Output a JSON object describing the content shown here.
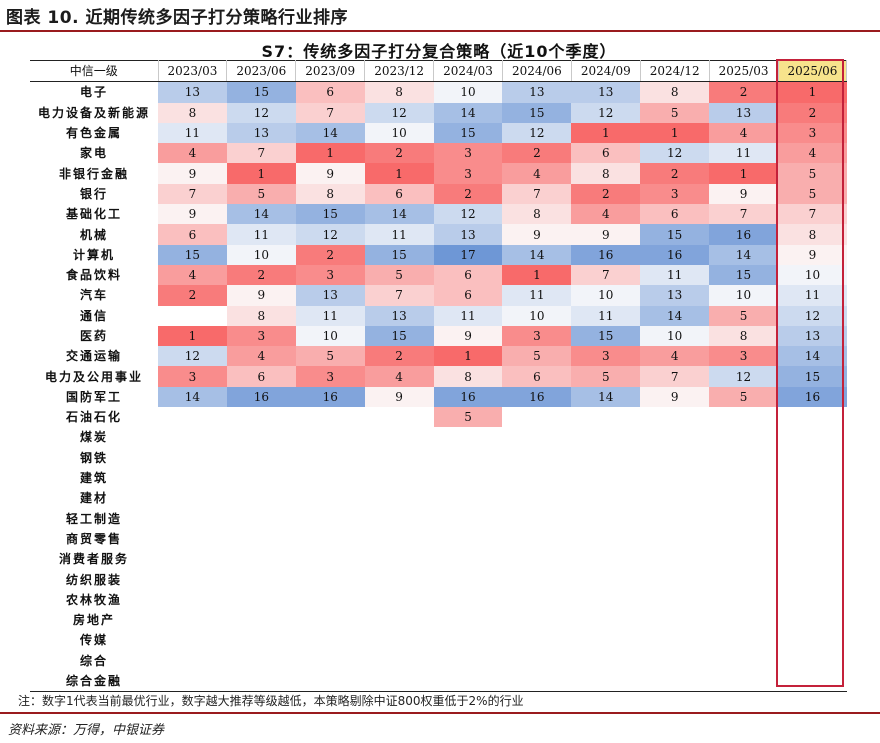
{
  "figure_title": "图表 10. 近期传统多因子打分策略行业排序",
  "table_title": "S7：传统多因子打分复合策略（近10个季度）",
  "corner_header": "中信一级",
  "columns": [
    "2023/03",
    "2023/06",
    "2023/09",
    "2023/12",
    "2024/03",
    "2024/06",
    "2024/09",
    "2024/12",
    "2025/03",
    "2025/06"
  ],
  "highlight_column": "2025/06",
  "colors": {
    "best": "#f86a6a",
    "worst": "#6e97d6",
    "mid": "#fbfbfb",
    "highlight_header": "#f7e38c",
    "highlight_frame": "#c4213a",
    "rule": "#9a1b1e"
  },
  "rows": [
    {
      "name": "电子",
      "ranks": [
        13,
        15,
        6,
        8,
        10,
        13,
        13,
        8,
        2,
        1
      ]
    },
    {
      "name": "电力设备及新能源",
      "ranks": [
        8,
        12,
        7,
        12,
        14,
        15,
        12,
        5,
        13,
        2
      ]
    },
    {
      "name": "有色金属",
      "ranks": [
        11,
        13,
        14,
        10,
        15,
        12,
        1,
        1,
        4,
        3
      ]
    },
    {
      "name": "家电",
      "ranks": [
        4,
        7,
        1,
        2,
        3,
        2,
        6,
        12,
        11,
        4
      ]
    },
    {
      "name": "非银行金融",
      "ranks": [
        9,
        1,
        9,
        1,
        3,
        4,
        8,
        2,
        1,
        5
      ]
    },
    {
      "name": "银行",
      "ranks": [
        7,
        5,
        8,
        6,
        2,
        7,
        2,
        3,
        9,
        5
      ]
    },
    {
      "name": "基础化工",
      "ranks": [
        9,
        14,
        15,
        14,
        12,
        8,
        4,
        6,
        7,
        7
      ]
    },
    {
      "name": "机械",
      "ranks": [
        6,
        11,
        12,
        11,
        13,
        9,
        9,
        15,
        16,
        8
      ]
    },
    {
      "name": "计算机",
      "ranks": [
        15,
        10,
        2,
        15,
        17,
        14,
        16,
        16,
        14,
        9
      ]
    },
    {
      "name": "食品饮料",
      "ranks": [
        4,
        2,
        3,
        5,
        6,
        1,
        7,
        11,
        15,
        10
      ]
    },
    {
      "name": "汽车",
      "ranks": [
        2,
        9,
        13,
        7,
        6,
        11,
        10,
        13,
        10,
        11
      ]
    },
    {
      "name": "通信",
      "ranks": [
        null,
        8,
        11,
        13,
        11,
        10,
        11,
        14,
        5,
        12
      ]
    },
    {
      "name": "医药",
      "ranks": [
        1,
        3,
        10,
        15,
        9,
        3,
        15,
        10,
        8,
        13
      ]
    },
    {
      "name": "交通运输",
      "ranks": [
        12,
        4,
        5,
        2,
        1,
        5,
        3,
        4,
        3,
        14
      ]
    },
    {
      "name": "电力及公用事业",
      "ranks": [
        3,
        6,
        3,
        4,
        8,
        6,
        5,
        7,
        12,
        15
      ]
    },
    {
      "name": "国防军工",
      "ranks": [
        14,
        16,
        16,
        9,
        16,
        16,
        14,
        9,
        5,
        16
      ]
    },
    {
      "name": "石油石化",
      "ranks": [
        null,
        null,
        null,
        null,
        5,
        null,
        null,
        null,
        null,
        null
      ]
    },
    {
      "name": "煤炭",
      "ranks": [
        null,
        null,
        null,
        null,
        null,
        null,
        null,
        null,
        null,
        null
      ]
    },
    {
      "name": "钢铁",
      "ranks": [
        null,
        null,
        null,
        null,
        null,
        null,
        null,
        null,
        null,
        null
      ]
    },
    {
      "name": "建筑",
      "ranks": [
        null,
        null,
        null,
        null,
        null,
        null,
        null,
        null,
        null,
        null
      ]
    },
    {
      "name": "建材",
      "ranks": [
        null,
        null,
        null,
        null,
        null,
        null,
        null,
        null,
        null,
        null
      ]
    },
    {
      "name": "轻工制造",
      "ranks": [
        null,
        null,
        null,
        null,
        null,
        null,
        null,
        null,
        null,
        null
      ]
    },
    {
      "name": "商贸零售",
      "ranks": [
        null,
        null,
        null,
        null,
        null,
        null,
        null,
        null,
        null,
        null
      ]
    },
    {
      "name": "消费者服务",
      "ranks": [
        null,
        null,
        null,
        null,
        null,
        null,
        null,
        null,
        null,
        null
      ]
    },
    {
      "name": "纺织服装",
      "ranks": [
        null,
        null,
        null,
        null,
        null,
        null,
        null,
        null,
        null,
        null
      ]
    },
    {
      "name": "农林牧渔",
      "ranks": [
        null,
        null,
        null,
        null,
        null,
        null,
        null,
        null,
        null,
        null
      ]
    },
    {
      "name": "房地产",
      "ranks": [
        null,
        null,
        null,
        null,
        null,
        null,
        null,
        null,
        null,
        null
      ]
    },
    {
      "name": "传媒",
      "ranks": [
        null,
        null,
        null,
        null,
        null,
        null,
        null,
        null,
        null,
        null
      ]
    },
    {
      "name": "综合",
      "ranks": [
        null,
        null,
        null,
        null,
        null,
        null,
        null,
        null,
        null,
        null
      ]
    },
    {
      "name": "综合金融",
      "ranks": [
        null,
        null,
        null,
        null,
        null,
        null,
        null,
        null,
        null,
        null
      ]
    }
  ],
  "note": "注：数字1代表当前最优行业，数字越大推荐等级越低，本策略剔除中证800权重低于2%的行业",
  "source": "资料来源：万得，中银证券"
}
